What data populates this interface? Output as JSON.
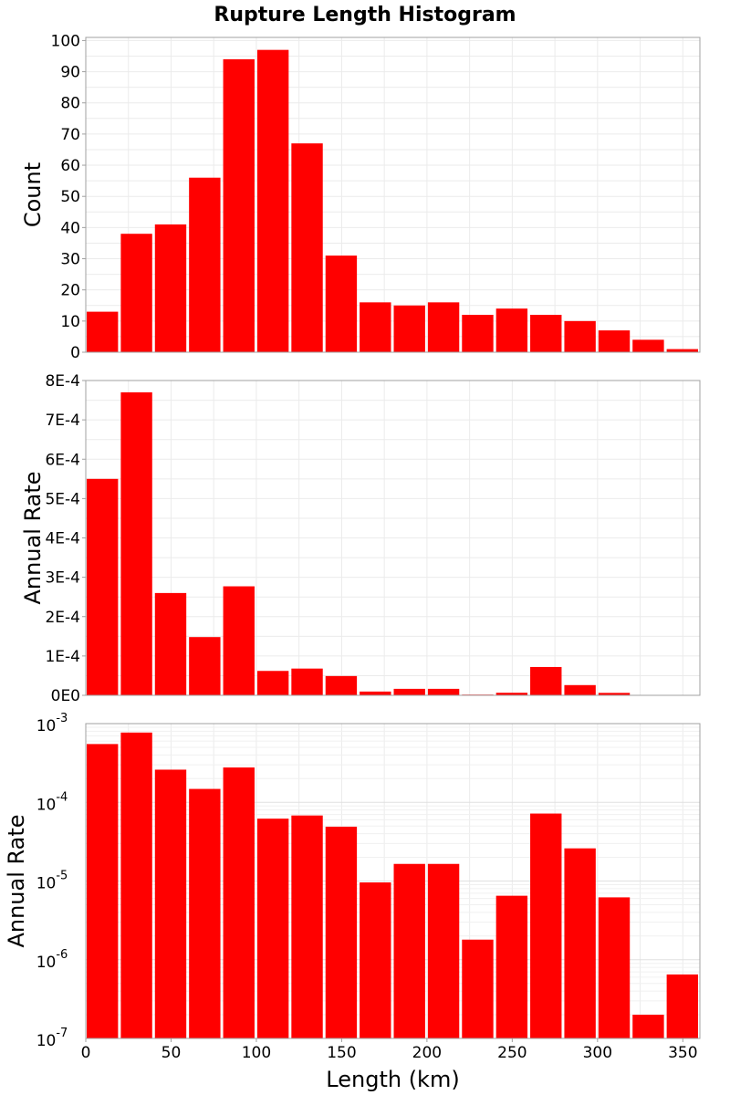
{
  "chart_data": [
    {
      "type": "bar",
      "title": "Rupture Length Histogram",
      "ylabel": "Count",
      "scale": "linear",
      "xlim": [
        0,
        360
      ],
      "ylim": [
        0,
        101
      ],
      "yticks": [
        "0",
        "10",
        "20",
        "30",
        "40",
        "50",
        "60",
        "70",
        "80",
        "90",
        "100"
      ],
      "bin_starts": [
        0,
        20,
        40,
        60,
        80,
        100,
        120,
        140,
        160,
        180,
        200,
        220,
        240,
        260,
        280,
        300,
        320,
        340
      ],
      "bin_width": 20,
      "values": [
        13,
        38,
        41,
        56,
        94,
        97,
        67,
        31,
        16,
        15,
        16,
        12,
        14,
        12,
        10,
        7,
        4,
        1
      ],
      "color": "#ff0000",
      "grid": true
    },
    {
      "type": "bar",
      "ylabel": "Annual Rate",
      "scale": "linear",
      "xlim": [
        0,
        360
      ],
      "ylim": [
        0,
        0.0008
      ],
      "yticks": [
        "0E0",
        "1E-4",
        "2E-4",
        "3E-4",
        "4E-4",
        "5E-4",
        "6E-4",
        "7E-4",
        "8E-4"
      ],
      "bin_starts": [
        0,
        20,
        40,
        60,
        80,
        100,
        120,
        140,
        160,
        180,
        200,
        220,
        240,
        260,
        280,
        300,
        320,
        340
      ],
      "bin_width": 20,
      "values": [
        0.00055,
        0.00077,
        0.00026,
        0.000148,
        0.000277,
        6.2e-05,
        6.8e-05,
        4.9e-05,
        9.6e-06,
        1.65e-05,
        1.65e-05,
        1.8e-06,
        6.5e-06,
        7.2e-05,
        2.6e-05,
        6.2e-06,
        2e-07,
        6.5e-07
      ],
      "color": "#ff0000",
      "grid": true
    },
    {
      "type": "bar",
      "ylabel": "Annual Rate",
      "xlabel": "Length (km)",
      "scale": "log",
      "xlim": [
        0,
        360
      ],
      "ylim": [
        1e-07,
        0.001
      ],
      "yticks": [
        {
          "base": "10",
          "exp": "-7"
        },
        {
          "base": "10",
          "exp": "-6"
        },
        {
          "base": "10",
          "exp": "-5"
        },
        {
          "base": "10",
          "exp": "-4"
        },
        {
          "base": "10",
          "exp": "-3"
        }
      ],
      "xticks": [
        "0",
        "50",
        "100",
        "150",
        "200",
        "250",
        "300",
        "350"
      ],
      "bin_starts": [
        0,
        20,
        40,
        60,
        80,
        100,
        120,
        140,
        160,
        180,
        200,
        220,
        240,
        260,
        280,
        300,
        320,
        340
      ],
      "bin_width": 20,
      "values": [
        0.00055,
        0.00077,
        0.00026,
        0.000148,
        0.000277,
        6.2e-05,
        6.8e-05,
        4.9e-05,
        9.6e-06,
        1.65e-05,
        1.65e-05,
        1.8e-06,
        6.5e-06,
        7.2e-05,
        2.6e-05,
        6.2e-06,
        2e-07,
        6.5e-07
      ],
      "color": "#ff0000",
      "grid": true
    }
  ]
}
